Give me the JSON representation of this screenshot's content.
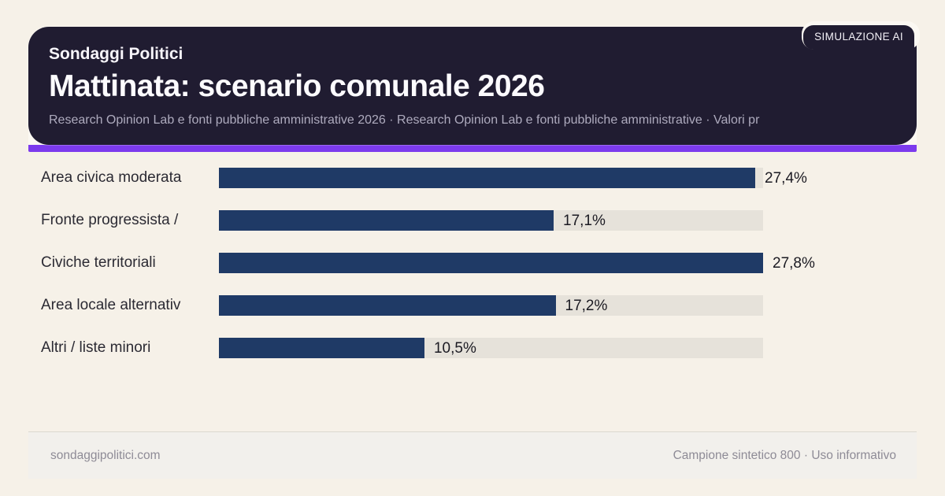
{
  "header": {
    "badge": "SIMULAZIONE AI",
    "kicker": "Sondaggi Politici",
    "title": "Mattinata: scenario comunale 2026",
    "subtitle": "Research Opinion Lab e fonti pubbliche amministrative 2026 · Research Opinion Lab e fonti pubbliche amministrative · Valori pr"
  },
  "chart_data": {
    "type": "bar",
    "orientation": "horizontal",
    "title": "Mattinata: scenario comunale 2026",
    "categories": [
      "Area civica moderata",
      "Fronte progressista /",
      "Civiche territoriali",
      "Area locale alternativ",
      "Altri / liste minori"
    ],
    "values": [
      27.4,
      17.1,
      27.8,
      17.2,
      10.5
    ],
    "value_labels": [
      "27,4%",
      "17,1%",
      "27,8%",
      "17,2%",
      "10,5%"
    ],
    "xlim": [
      0,
      27.8
    ],
    "unit": "%",
    "grid": false,
    "legend": false,
    "bar_color": "#1f3a66",
    "track_color": "#e6e2da"
  },
  "footer": {
    "left": "sondaggipolitici.com",
    "right": "Campione sintetico 800 · Uso informativo"
  },
  "colors": {
    "page_background": "#f6f1e8",
    "header_background": "#201c31",
    "accent_purple": "#7c3aed",
    "bar_navy": "#1f3a66",
    "bar_track": "#e6e2da",
    "subtitle_text": "#aeabbe",
    "footer_text": "#8e8b96"
  }
}
